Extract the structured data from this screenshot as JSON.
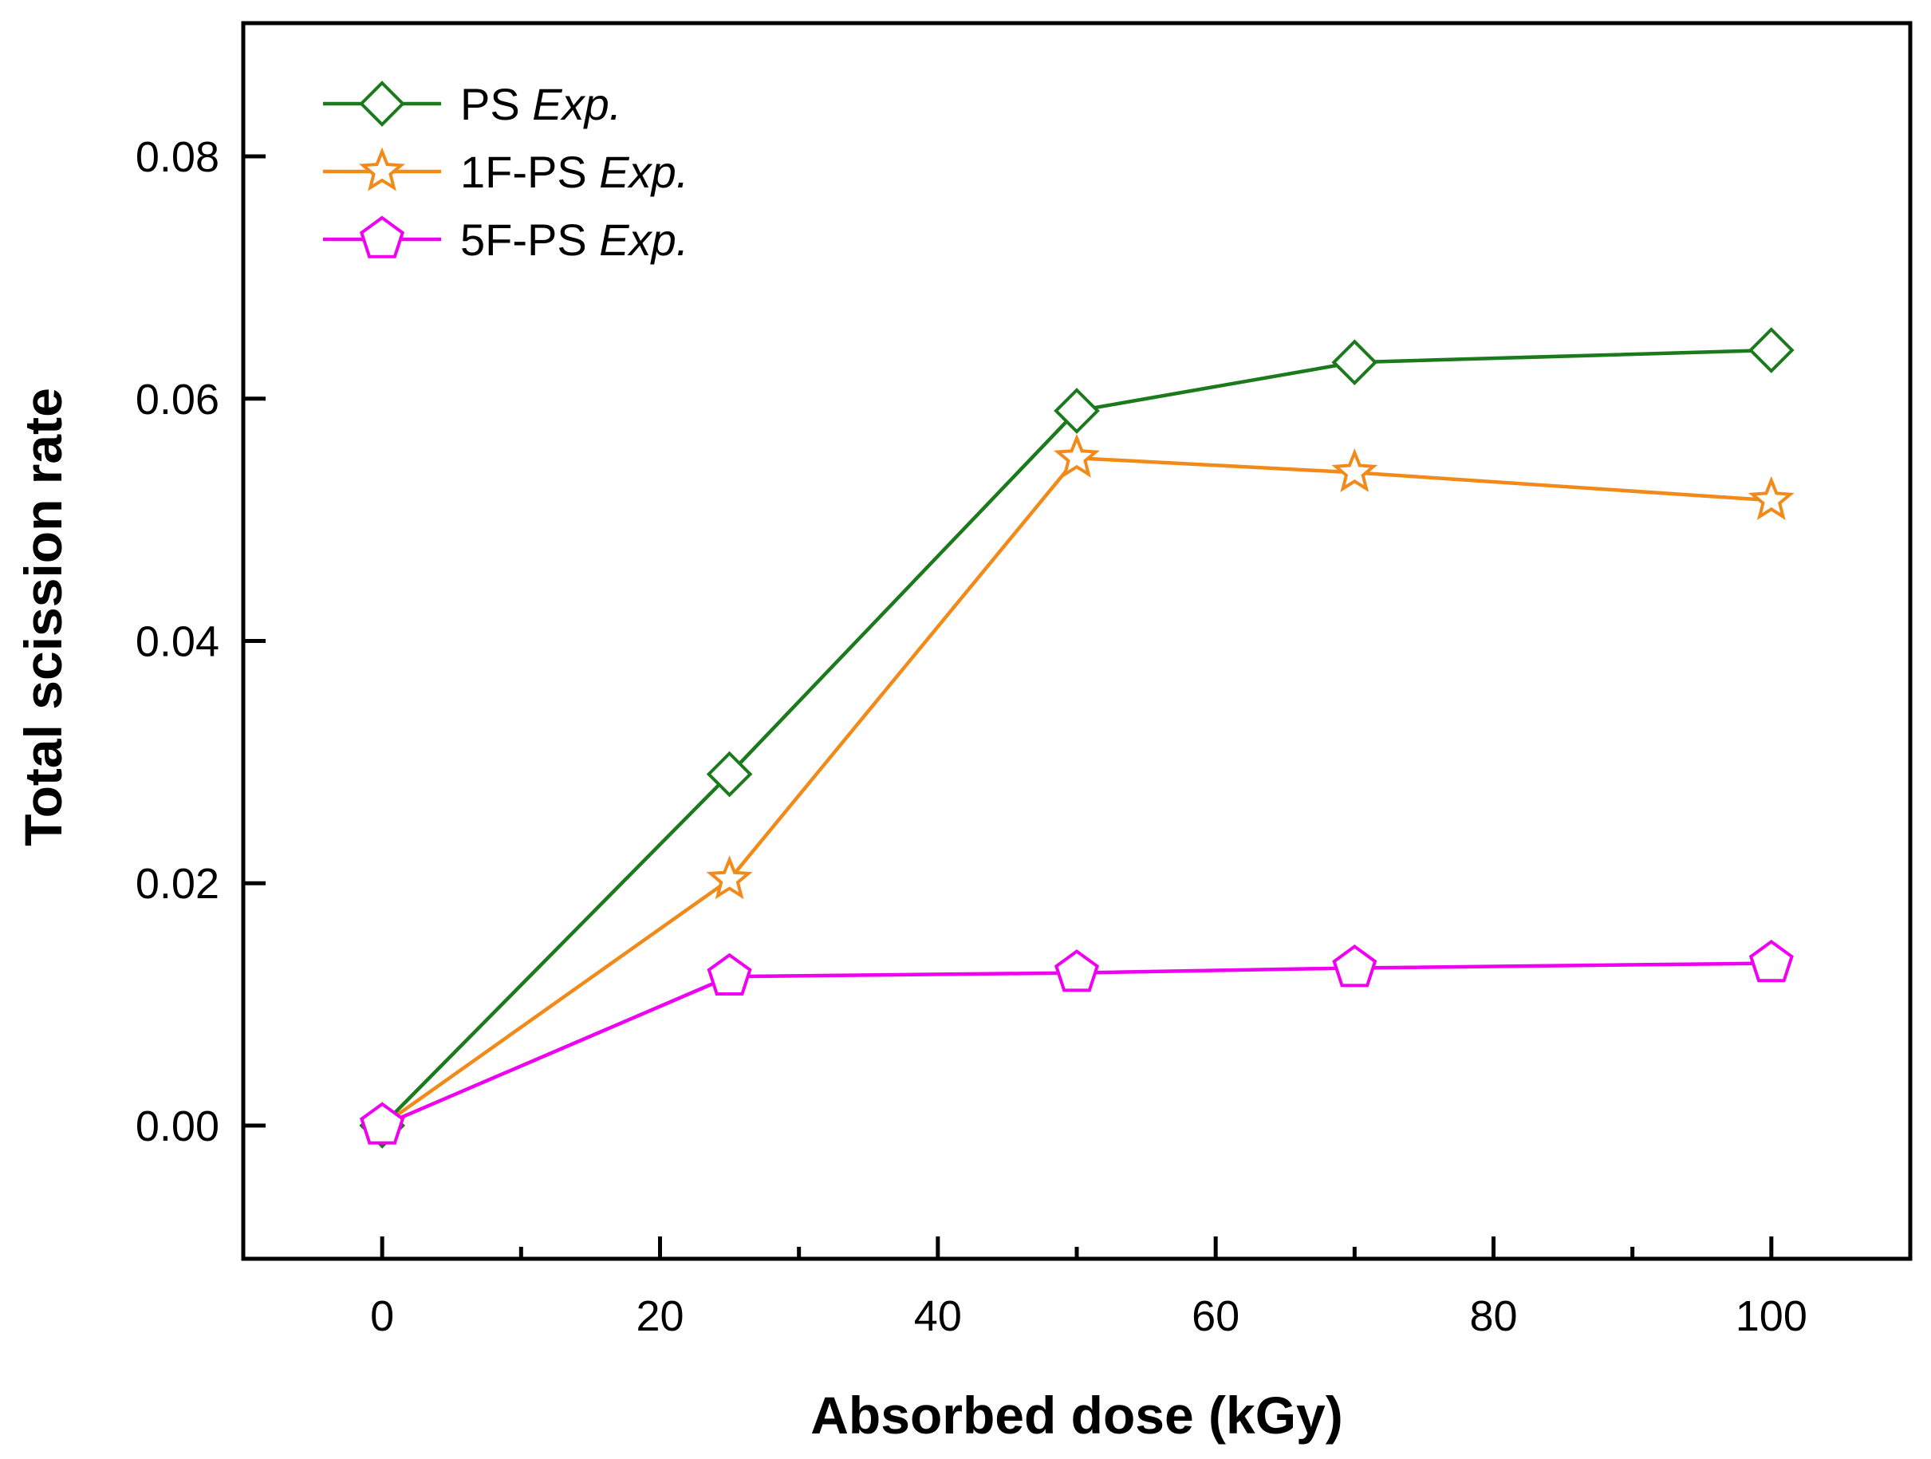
{
  "chart_data": {
    "type": "line",
    "title": "",
    "xlabel": "Absorbed dose (kGy)",
    "ylabel": "Total scission rate",
    "xlim": [
      -10,
      110
    ],
    "ylim": [
      -0.011,
      0.091
    ],
    "x_ticks": [
      0,
      20,
      40,
      60,
      80,
      100
    ],
    "x_tick_labels": [
      "0",
      "20",
      "40",
      "60",
      "80",
      "100"
    ],
    "x_minor_ticks": [
      10,
      30,
      50,
      70,
      90
    ],
    "y_ticks": [
      0.0,
      0.02,
      0.04,
      0.06,
      0.08
    ],
    "y_tick_labels": [
      "0.00",
      "0.02",
      "0.04",
      "0.06",
      "0.08"
    ],
    "grid": false,
    "legend_position": "top-left",
    "series": [
      {
        "name": "PS",
        "name_suffix": "Exp.",
        "color": "#1b7a1b",
        "marker": "diamond",
        "x": [
          0,
          25,
          50,
          70,
          100
        ],
        "values": [
          0.0,
          0.029,
          0.059,
          0.063,
          0.064
        ]
      },
      {
        "name": "1F-PS",
        "name_suffix": "Exp.",
        "color": "#f28a1a",
        "marker": "star",
        "x": [
          0,
          25,
          50,
          70,
          100
        ],
        "values": [
          0.0,
          0.0203,
          0.0551,
          0.0539,
          0.0516
        ]
      },
      {
        "name": "5F-PS",
        "name_suffix": "Exp.",
        "color": "#f000f0",
        "marker": "pentagon",
        "x": [
          0,
          25,
          50,
          70,
          100
        ],
        "values": [
          0.0,
          0.0123,
          0.0126,
          0.013,
          0.0134
        ]
      }
    ]
  }
}
